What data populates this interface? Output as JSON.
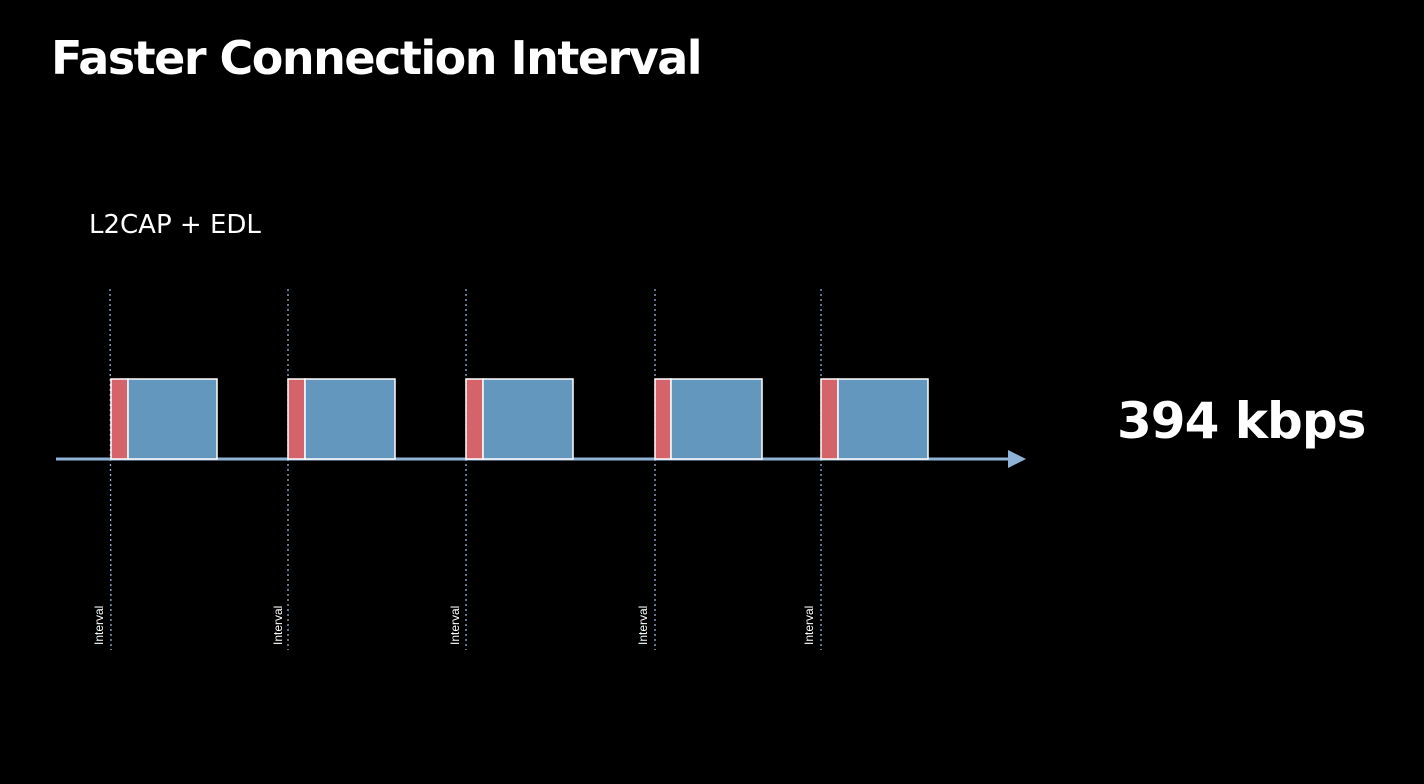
{
  "title": "Faster Connection Interval",
  "subtitle": "L2CAP + EDL",
  "throughput": "394 kbps",
  "interval_label": "Interval",
  "diagram": {
    "interval_count": 5,
    "colors": {
      "background": "#000000",
      "axis": "#8fb3d6",
      "interval_marker": "#8fb3d6",
      "header_packet": "#d4636a",
      "payload_packet": "#6497bd",
      "packet_border": "#ffffff",
      "text": "#ffffff"
    }
  }
}
